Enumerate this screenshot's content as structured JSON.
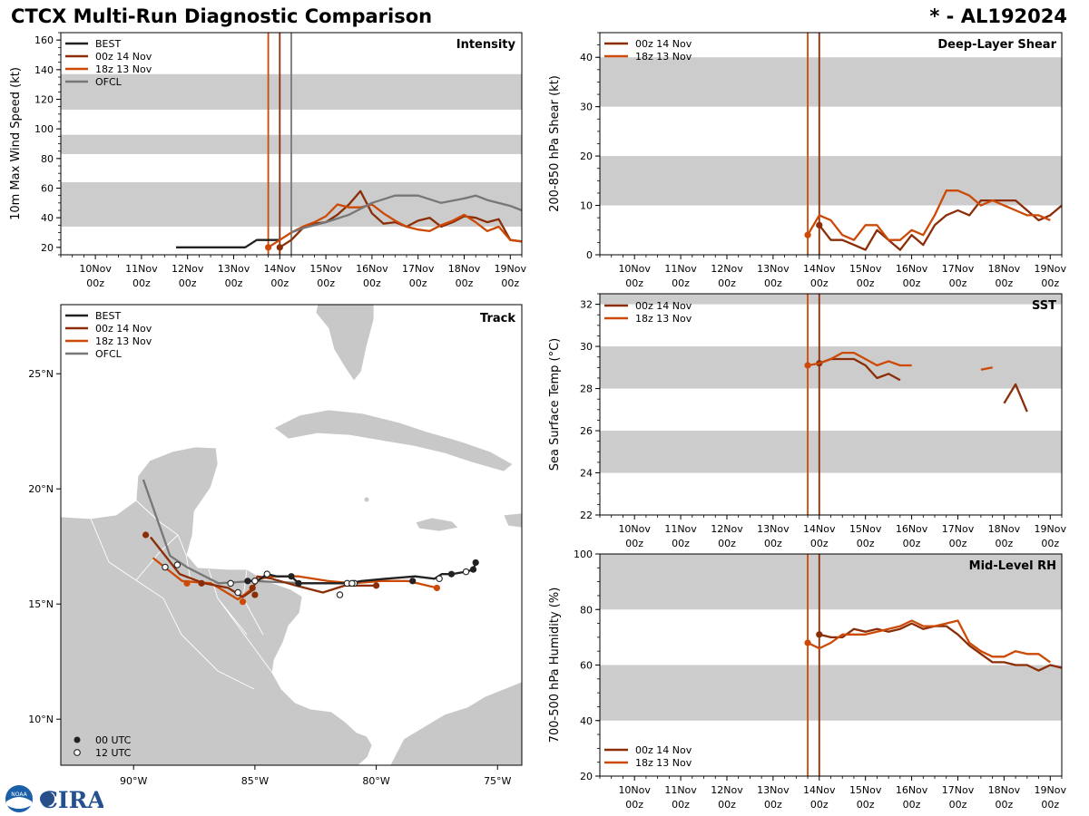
{
  "header": {
    "title": "CTCX Multi-Run Diagnostic Comparison",
    "storm_id": "* - AL192024"
  },
  "logo": {
    "text": "CIRA",
    "seal_text": "NOAA"
  },
  "colors": {
    "best": "#222222",
    "run00z": "#8B2E08",
    "run18z": "#CC4A06",
    "ofcl": "#777777",
    "band": "#cccccc",
    "land": "#c8c8c8"
  },
  "time_axis": {
    "tick_labels": [
      {
        "day": "10Nov",
        "hour": "00z"
      },
      {
        "day": "11Nov",
        "hour": "00z"
      },
      {
        "day": "12Nov",
        "hour": "00z"
      },
      {
        "day": "13Nov",
        "hour": "00z"
      },
      {
        "day": "14Nov",
        "hour": "00z"
      },
      {
        "day": "15Nov",
        "hour": "00z"
      },
      {
        "day": "16Nov",
        "hour": "00z"
      },
      {
        "day": "17Nov",
        "hour": "00z"
      },
      {
        "day": "18Nov",
        "hour": "00z"
      },
      {
        "day": "19Nov",
        "hour": "00z"
      }
    ]
  },
  "chart_data": [
    {
      "id": "intensity",
      "type": "line",
      "panel_label": "Intensity",
      "ylabel": "10m Max Wind Speed (kt)",
      "xlim_days": [
        9.25,
        19.25
      ],
      "ylim": [
        15,
        165
      ],
      "yticks": [
        20,
        40,
        60,
        80,
        100,
        120,
        140,
        160
      ],
      "ytick_labels": [
        "20",
        "40",
        "60",
        "80",
        "100",
        "120",
        "140",
        "160"
      ],
      "bands": [
        [
          34,
          64
        ],
        [
          83,
          96
        ],
        [
          113,
          137
        ]
      ],
      "init_lines": [
        {
          "series": "18z 13 Nov",
          "day": 13.75
        },
        {
          "series": "00z 14 Nov",
          "day": 14.0
        },
        {
          "series": "OFCL",
          "day": 14.25
        }
      ],
      "legend": [
        "BEST",
        "00z 14 Nov",
        "18z 13 Nov",
        "OFCL"
      ],
      "series": [
        {
          "name": "BEST",
          "color_key": "best",
          "days": [
            11.75,
            12.0,
            12.5,
            13.0,
            13.25,
            13.5,
            13.75,
            14.0
          ],
          "values": [
            20,
            20,
            20,
            20,
            20,
            25,
            25,
            25
          ]
        },
        {
          "name": "00z 14 Nov",
          "color_key": "run00z",
          "start_marker": true,
          "days": [
            14.0,
            14.25,
            14.5,
            14.75,
            15.0,
            15.25,
            15.5,
            15.75,
            16.0,
            16.25,
            16.5,
            16.75,
            17.0,
            17.25,
            17.5,
            17.75,
            18.0,
            18.25,
            18.5,
            18.75,
            19.0,
            19.25
          ],
          "values": [
            20,
            25,
            33,
            36,
            37,
            42,
            49,
            58,
            43,
            36,
            37,
            34,
            38,
            40,
            34,
            37,
            41,
            40,
            37,
            39,
            25,
            24
          ]
        },
        {
          "name": "18z 13 Nov",
          "color_key": "run18z",
          "start_marker": true,
          "days": [
            13.75,
            14.0,
            14.25,
            14.5,
            14.75,
            15.0,
            15.25,
            15.5,
            15.75,
            16.0,
            16.25,
            16.5,
            16.75,
            17.0,
            17.25,
            17.5,
            17.75,
            18.0,
            18.25,
            18.5,
            18.75,
            19.0,
            19.25
          ],
          "values": [
            20,
            25,
            30,
            34,
            37,
            41,
            49,
            47,
            47,
            49,
            43,
            38,
            34,
            32,
            31,
            35,
            38,
            42,
            37,
            31,
            34,
            25,
            24
          ]
        },
        {
          "name": "OFCL",
          "color_key": "ofcl",
          "days": [
            14.25,
            14.5,
            15.0,
            15.5,
            16.0,
            16.5,
            17.0,
            17.5,
            18.0,
            18.25,
            18.5,
            19.0,
            19.25
          ],
          "values": [
            30,
            33,
            37,
            42,
            50,
            55,
            55,
            50,
            53,
            55,
            52,
            48,
            45
          ]
        }
      ]
    },
    {
      "id": "shear",
      "type": "line",
      "panel_label": "Deep-Layer Shear",
      "ylabel": "200-850 hPa Shear (kt)",
      "xlim_days": [
        9.25,
        19.25
      ],
      "ylim": [
        0,
        45
      ],
      "yticks": [
        0,
        10,
        20,
        30,
        40
      ],
      "ytick_labels": [
        "0",
        "10",
        "20",
        "30",
        "40"
      ],
      "bands": [
        [
          10,
          20
        ],
        [
          30,
          40
        ]
      ],
      "init_lines": [
        {
          "series": "18z 13 Nov",
          "day": 13.75
        },
        {
          "series": "00z 14 Nov",
          "day": 14.0
        }
      ],
      "legend": [
        "00z 14 Nov",
        "18z 13 Nov"
      ],
      "series": [
        {
          "name": "00z 14 Nov",
          "color_key": "run00z",
          "start_marker": true,
          "days": [
            14.0,
            14.25,
            14.5,
            14.75,
            15.0,
            15.25,
            15.5,
            15.75,
            16.0,
            16.25,
            16.5,
            16.75,
            17.0,
            17.25,
            17.5,
            17.75,
            18.0,
            18.25,
            18.5,
            18.75,
            19.0,
            19.25
          ],
          "values": [
            6,
            3,
            3,
            2,
            1,
            5,
            3,
            1,
            4,
            2,
            6,
            8,
            9,
            8,
            11,
            11,
            11,
            11,
            9,
            7,
            8,
            10
          ]
        },
        {
          "name": "18z 13 Nov",
          "color_key": "run18z",
          "start_marker": true,
          "days": [
            13.75,
            14.0,
            14.25,
            14.5,
            14.75,
            15.0,
            15.25,
            15.5,
            15.75,
            16.0,
            16.25,
            16.5,
            16.75,
            17.0,
            17.25,
            17.5,
            17.75,
            18.0,
            18.25,
            18.5,
            18.75,
            19.0
          ],
          "values": [
            4,
            8,
            7,
            4,
            3,
            6,
            6,
            3,
            3,
            5,
            4,
            8,
            13,
            13,
            12,
            10,
            11,
            10,
            9,
            8,
            8,
            7
          ]
        }
      ]
    },
    {
      "id": "sst",
      "type": "line",
      "panel_label": "SST",
      "ylabel": "Sea Surface Temp (°C)",
      "xlim_days": [
        9.25,
        19.25
      ],
      "ylim": [
        22,
        32.5
      ],
      "yticks": [
        22,
        24,
        26,
        28,
        30,
        32
      ],
      "ytick_labels": [
        "22",
        "24",
        "26",
        "28",
        "30",
        "32"
      ],
      "bands": [
        [
          24,
          26
        ],
        [
          28,
          30
        ],
        [
          32,
          34
        ]
      ],
      "init_lines": [
        {
          "series": "18z 13 Nov",
          "day": 13.75
        },
        {
          "series": "00z 14 Nov",
          "day": 14.0
        }
      ],
      "legend": [
        "00z 14 Nov",
        "18z 13 Nov"
      ],
      "series": [
        {
          "name": "00z 14 Nov",
          "color_key": "run00z",
          "start_marker": true,
          "segments": [
            {
              "days": [
                14.0,
                14.25,
                14.5,
                14.75,
                15.0,
                15.25,
                15.5,
                15.75
              ],
              "values": [
                29.2,
                29.4,
                29.4,
                29.4,
                29.1,
                28.5,
                28.7,
                28.4
              ]
            },
            {
              "days": [
                18.0,
                18.25,
                18.5
              ],
              "values": [
                27.3,
                28.2,
                26.9
              ]
            }
          ]
        },
        {
          "name": "18z 13 Nov",
          "color_key": "run18z",
          "start_marker": true,
          "segments": [
            {
              "days": [
                13.75,
                14.0,
                14.25,
                14.5,
                14.75,
                15.0,
                15.25,
                15.5,
                15.75,
                16.0
              ],
              "values": [
                29.1,
                29.2,
                29.4,
                29.7,
                29.7,
                29.4,
                29.1,
                29.3,
                29.1,
                29.1
              ]
            },
            {
              "days": [
                17.5,
                17.75
              ],
              "values": [
                28.9,
                29.0
              ]
            }
          ]
        }
      ]
    },
    {
      "id": "rh",
      "type": "line",
      "panel_label": "Mid-Level RH",
      "ylabel": "700-500 hPa Humidity (%)",
      "xlim_days": [
        9.25,
        19.25
      ],
      "ylim": [
        20,
        100
      ],
      "yticks": [
        20,
        40,
        60,
        80,
        100
      ],
      "ytick_labels": [
        "20",
        "40",
        "60",
        "80",
        "100"
      ],
      "bands": [
        [
          40,
          60
        ],
        [
          80,
          100
        ]
      ],
      "init_lines": [
        {
          "series": "18z 13 Nov",
          "day": 13.75
        },
        {
          "series": "00z 14 Nov",
          "day": 14.0
        }
      ],
      "legend": [
        "00z 14 Nov",
        "18z 13 Nov"
      ],
      "series": [
        {
          "name": "00z 14 Nov",
          "color_key": "run00z",
          "start_marker": true,
          "days": [
            14.0,
            14.25,
            14.5,
            14.75,
            15.0,
            15.25,
            15.5,
            15.75,
            16.0,
            16.25,
            16.5,
            16.75,
            17.0,
            17.25,
            17.5,
            17.75,
            18.0,
            18.25,
            18.5,
            18.75,
            19.0,
            19.25
          ],
          "values": [
            71,
            70,
            70,
            73,
            72,
            73,
            72,
            73,
            75,
            73,
            74,
            74,
            71,
            67,
            64,
            61,
            61,
            60,
            60,
            58,
            60,
            59
          ]
        },
        {
          "name": "18z 13 Nov",
          "color_key": "run18z",
          "start_marker": true,
          "days": [
            13.75,
            14.0,
            14.25,
            14.5,
            14.75,
            15.0,
            15.25,
            15.5,
            15.75,
            16.0,
            16.25,
            16.5,
            16.75,
            17.0,
            17.25,
            17.5,
            17.75,
            18.0,
            18.25,
            18.5,
            18.75,
            19.0
          ],
          "values": [
            68,
            66,
            68,
            71,
            71,
            71,
            72,
            73,
            74,
            76,
            74,
            74,
            75,
            76,
            68,
            65,
            63,
            63,
            65,
            64,
            64,
            61
          ]
        }
      ]
    },
    {
      "id": "track",
      "type": "scatter",
      "panel_label": "Track",
      "lon_range": [
        -93,
        -74
      ],
      "lat_range": [
        8,
        28
      ],
      "xtick_values": [
        -90,
        -85,
        -80,
        -75
      ],
      "xtick_labels": [
        "90°W",
        "85°W",
        "80°W",
        "75°W"
      ],
      "ytick_values": [
        10,
        15,
        20,
        25
      ],
      "ytick_labels": [
        "10°N",
        "15°N",
        "20°N",
        "25°N"
      ],
      "legend": [
        "BEST",
        "00z 14 Nov",
        "18z 13 Nov",
        "OFCL"
      ],
      "marker_legend": [
        "00 UTC",
        "12 UTC"
      ],
      "series": [
        {
          "name": "BEST",
          "color_key": "best",
          "lon": [
            -75.9,
            -76.0,
            -76.3,
            -76.9,
            -77.3,
            -77.6,
            -78.4,
            -79.6,
            -80.6,
            -81.1,
            -82.2,
            -83.2,
            -83.5,
            -84.1,
            -84.5,
            -84.9,
            -85.3
          ],
          "lat": [
            16.8,
            16.5,
            16.4,
            16.3,
            16.3,
            16.1,
            16.2,
            16.1,
            16.0,
            15.9,
            15.9,
            15.9,
            16.2,
            16.2,
            16.3,
            16.0,
            16.0
          ],
          "markers": [
            {
              "lon": -75.9,
              "lat": 16.8,
              "kind": "00"
            },
            {
              "lon": -76.0,
              "lat": 16.5,
              "kind": "00"
            },
            {
              "lon": -76.3,
              "lat": 16.4,
              "kind": "12"
            },
            {
              "lon": -76.9,
              "lat": 16.3,
              "kind": "00"
            },
            {
              "lon": -77.4,
              "lat": 16.1,
              "kind": "12"
            },
            {
              "lon": -78.5,
              "lat": 16.0,
              "kind": "00"
            },
            {
              "lon": -81.0,
              "lat": 15.9,
              "kind": "12"
            },
            {
              "lon": -83.2,
              "lat": 15.9,
              "kind": "00"
            },
            {
              "lon": -83.5,
              "lat": 16.2,
              "kind": "00"
            },
            {
              "lon": -84.5,
              "lat": 16.3,
              "kind": "12"
            },
            {
              "lon": -85.3,
              "lat": 16.0,
              "kind": "00"
            }
          ]
        },
        {
          "name": "00z 14 Nov",
          "color_key": "run00z",
          "lon": [
            -80.0,
            -80.6,
            -81.3,
            -82.2,
            -83.3,
            -84.3,
            -84.9,
            -85.1,
            -85.5,
            -86.1,
            -87.1,
            -88.1,
            -89.3
          ],
          "lat": [
            15.8,
            15.8,
            15.8,
            15.5,
            15.8,
            16.1,
            16.2,
            15.6,
            15.3,
            15.7,
            15.9,
            16.3,
            17.9
          ],
          "markers": [
            {
              "lon": -80.0,
              "lat": 15.8,
              "kind": "00"
            },
            {
              "lon": -81.5,
              "lat": 15.4,
              "kind": "12"
            },
            {
              "lon": -85.0,
              "lat": 15.4,
              "kind": "00"
            },
            {
              "lon": -85.1,
              "lat": 15.7,
              "kind": "00"
            },
            {
              "lon": -87.2,
              "lat": 15.9,
              "kind": "00"
            },
            {
              "lon": -89.5,
              "lat": 18.0,
              "kind": "00"
            }
          ]
        },
        {
          "name": "18z 13 Nov",
          "color_key": "run18z",
          "lon": [
            -77.5,
            -78.7,
            -79.8,
            -81.0,
            -82.0,
            -83.2,
            -84.2,
            -84.8,
            -85.2,
            -85.7,
            -86.8,
            -88.0,
            -89.2
          ],
          "lat": [
            15.7,
            16.0,
            16.0,
            15.9,
            16.0,
            16.2,
            16.2,
            16.1,
            15.6,
            15.2,
            15.9,
            16.0,
            17.0
          ],
          "markers": [
            {
              "lon": -77.5,
              "lat": 15.7,
              "kind": "00"
            },
            {
              "lon": -81.2,
              "lat": 15.9,
              "kind": "12"
            },
            {
              "lon": -85.5,
              "lat": 15.1,
              "kind": "00"
            },
            {
              "lon": -85.7,
              "lat": 15.5,
              "kind": "12"
            },
            {
              "lon": -87.8,
              "lat": 15.9,
              "kind": "00"
            },
            {
              "lon": -88.7,
              "lat": 16.6,
              "kind": "12"
            }
          ]
        },
        {
          "name": "OFCL",
          "color_key": "ofcl",
          "lon": [
            -80.9,
            -83.0,
            -85.0,
            -86.5,
            -87.8,
            -88.5,
            -89.6
          ],
          "lat": [
            15.9,
            15.9,
            16.0,
            15.9,
            16.6,
            17.1,
            20.4
          ],
          "markers": [
            {
              "lon": -80.9,
              "lat": 15.9,
              "kind": "12"
            },
            {
              "lon": -85.0,
              "lat": 16.0,
              "kind": "12"
            },
            {
              "lon": -86.0,
              "lat": 15.9,
              "kind": "12"
            },
            {
              "lon": -88.2,
              "lat": 16.7,
              "kind": "12"
            }
          ]
        }
      ]
    }
  ]
}
